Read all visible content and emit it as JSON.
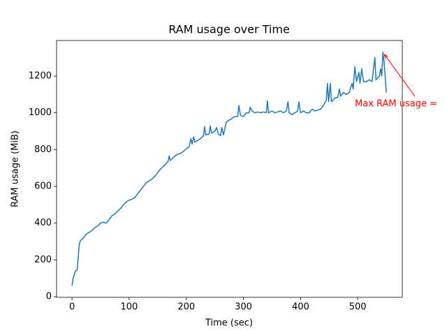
{
  "chart_data": {
    "type": "line",
    "title": "RAM usage over Time",
    "x_label": "Time (sec)",
    "y_label": "RAM usage (MiB)",
    "x": [
      0,
      2,
      4,
      6,
      9,
      11,
      13,
      15,
      20,
      25,
      30,
      35,
      40,
      45,
      50,
      55,
      60,
      65,
      70,
      75,
      80,
      85,
      90,
      95,
      100,
      105,
      110,
      115,
      120,
      125,
      130,
      135,
      140,
      145,
      150,
      155,
      160,
      165,
      168,
      170,
      172,
      175,
      180,
      185,
      190,
      195,
      200,
      205,
      208,
      210,
      213,
      215,
      220,
      225,
      230,
      232,
      234,
      240,
      242,
      244,
      250,
      253,
      256,
      260,
      262,
      265,
      270,
      275,
      280,
      285,
      290,
      292,
      295,
      300,
      305,
      310,
      312,
      315,
      320,
      325,
      330,
      335,
      340,
      342,
      344,
      350,
      355,
      360,
      365,
      370,
      375,
      378,
      380,
      385,
      390,
      395,
      397,
      400,
      405,
      410,
      415,
      420,
      425,
      430,
      435,
      440,
      445,
      447,
      449,
      452,
      454,
      460,
      465,
      468,
      470,
      475,
      480,
      485,
      490,
      492,
      495,
      498,
      502,
      504,
      507,
      510,
      515,
      520,
      525,
      530,
      532,
      535,
      538,
      540,
      542,
      544,
      546,
      548,
      550
    ],
    "values": [
      60,
      100,
      120,
      140,
      145,
      220,
      290,
      305,
      320,
      340,
      350,
      360,
      375,
      385,
      400,
      405,
      400,
      420,
      440,
      450,
      465,
      480,
      500,
      515,
      525,
      530,
      540,
      560,
      580,
      600,
      620,
      630,
      640,
      655,
      675,
      695,
      710,
      725,
      735,
      765,
      740,
      750,
      765,
      775,
      780,
      790,
      805,
      815,
      860,
      830,
      870,
      840,
      850,
      860,
      875,
      925,
      880,
      885,
      930,
      890,
      900,
      920,
      885,
      875,
      920,
      880,
      950,
      960,
      970,
      980,
      980,
      1040,
      985,
      980,
      1000,
      1000,
      1030,
      1010,
      1000,
      1005,
      1000,
      1005,
      1000,
      1065,
      1000,
      1010,
      1000,
      1005,
      1010,
      1000,
      1010,
      1060,
      1000,
      990,
      1000,
      1010,
      1060,
      1000,
      1010,
      1000,
      1000,
      1020,
      1010,
      1015,
      1020,
      1040,
      1070,
      1160,
      1060,
      1160,
      1060,
      1080,
      1085,
      1130,
      1090,
      1110,
      1100,
      1110,
      1160,
      1130,
      1250,
      1170,
      1220,
      1160,
      1240,
      1170,
      1170,
      1180,
      1170,
      1300,
      1180,
      1190,
      1200,
      1240,
      1200,
      1330,
      1280,
      1200,
      1110
    ],
    "color": "#1f77b4",
    "xlim": [
      -27,
      578
    ],
    "ylim": [
      -3.5,
      1393.5
    ],
    "xticks": [
      0,
      100,
      200,
      300,
      400,
      500
    ],
    "yticks": [
      0,
      200,
      400,
      600,
      800,
      1000,
      1200
    ],
    "annotation": {
      "text": "Max RAM usage =",
      "x": 544,
      "y": 1330,
      "color": "#ff0000"
    }
  }
}
